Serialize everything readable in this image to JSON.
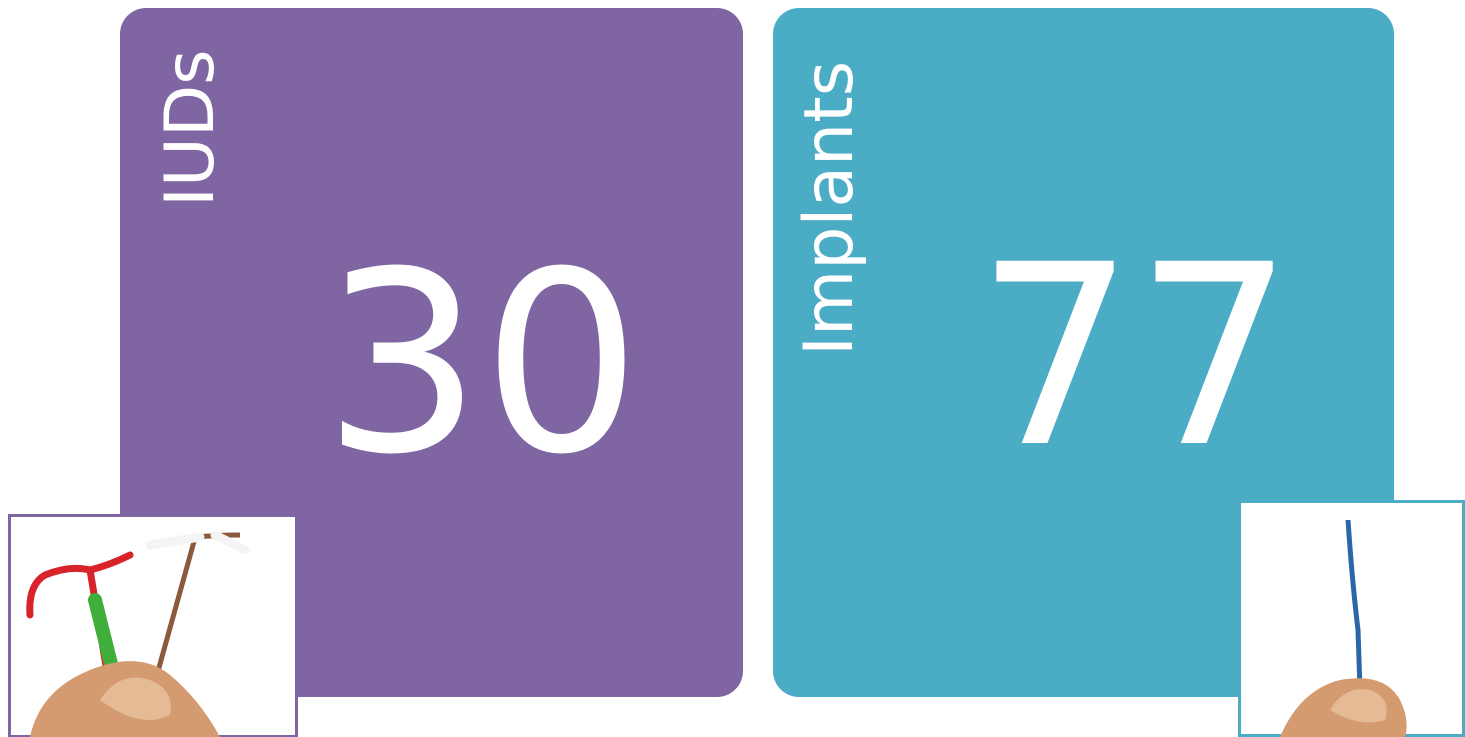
{
  "tiles": [
    {
      "label": "IUDs",
      "value": "30"
    },
    {
      "label": "Implants",
      "value": "77"
    }
  ]
}
